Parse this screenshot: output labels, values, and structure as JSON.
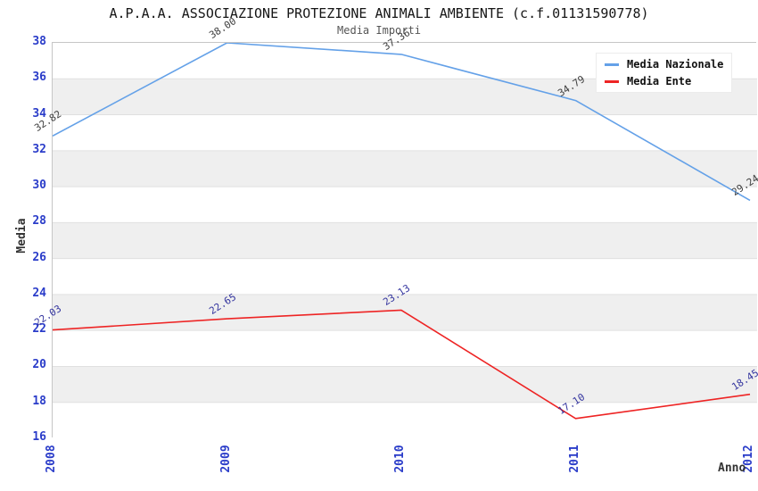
{
  "chart": {
    "title": "A.P.A.A. ASSOCIAZIONE PROTEZIONE ANIMALI AMBIENTE (c.f.01131590778)",
    "subtitle": "Media Importi"
  },
  "chart_data": {
    "type": "line",
    "categories": [
      "2008",
      "2009",
      "2010",
      "2011",
      "2012"
    ],
    "series": [
      {
        "name": "Media Nazionale",
        "color": "#64a1e8",
        "label_color": "#3c3c3c",
        "values": [
          32.82,
          38.0,
          37.36,
          34.79,
          29.24
        ]
      },
      {
        "name": "Media Ente",
        "color": "#ee2424",
        "label_color": "#32339e",
        "values": [
          22.03,
          22.65,
          23.13,
          17.1,
          18.45
        ]
      }
    ],
    "xlabel": "Anno",
    "ylabel": "Media",
    "ylim": [
      16,
      38
    ],
    "yticks": [
      16,
      18,
      20,
      22,
      24,
      26,
      28,
      30,
      32,
      34,
      36,
      38
    ],
    "grid": "horizontal-bands-alternating",
    "band_color": "#efefef",
    "gridline_color": "#e0e0e0",
    "tick_label_color": "#2a3cc9",
    "legend_position": "top-right"
  }
}
